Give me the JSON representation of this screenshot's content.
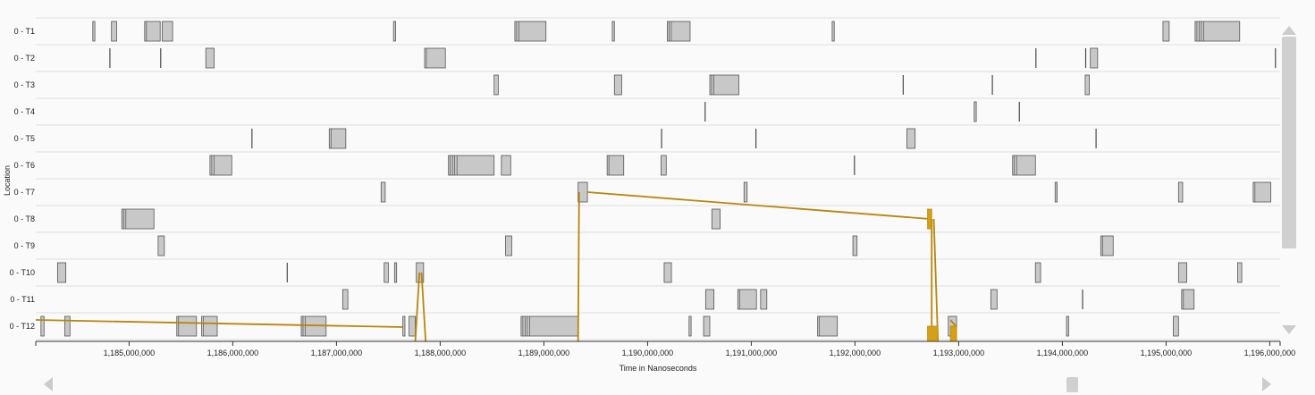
{
  "y_axis_title": "Location",
  "x_axis_title": "Time in Nanoseconds",
  "colors": {
    "background": "#fafafa",
    "gridline": "#dddddd",
    "bar_fill": "#c8c8c8",
    "bar_stroke": "#555555",
    "event_dark": "#444444",
    "message_line": "#b8860b",
    "scrollbar": "#d0d0d0",
    "arrow": "#cccccc"
  },
  "x_range": [
    1184100000,
    1196100000
  ],
  "x_ticks": [
    {
      "value": 1185000000,
      "label": "1,185,000,000"
    },
    {
      "value": 1186000000,
      "label": "1,186,000,000"
    },
    {
      "value": 1187000000,
      "label": "1,187,000,000"
    },
    {
      "value": 1188000000,
      "label": "1,188,000,000"
    },
    {
      "value": 1189000000,
      "label": "1,189,000,000"
    },
    {
      "value": 1190000000,
      "label": "1,190,000,000"
    },
    {
      "value": 1191000000,
      "label": "1,191,000,000"
    },
    {
      "value": 1192000000,
      "label": "1,192,000,000"
    },
    {
      "value": 1193000000,
      "label": "1,193,000,000"
    },
    {
      "value": 1194000000,
      "label": "1,194,000,000"
    },
    {
      "value": 1195000000,
      "label": "1,195,000,000"
    },
    {
      "value": 1196000000,
      "label": "1,196,000,000"
    }
  ],
  "rows": [
    {
      "label": "0 - T1",
      "events": [
        [
          1184650000,
          1184670000
        ],
        [
          1184830000,
          1184880000
        ],
        [
          1185150000,
          1185300000
        ],
        [
          1185320000,
          1185420000
        ],
        [
          1187550000,
          1187570000
        ],
        [
          1188720000,
          1189020000
        ],
        [
          1189660000,
          1189680000
        ],
        [
          1190190000,
          1190410000
        ],
        [
          1191780000,
          1191800000
        ],
        [
          1194970000,
          1195030000
        ],
        [
          1195280000,
          1195710000
        ]
      ]
    },
    {
      "label": "0 - T2",
      "events": [
        [
          1184810000,
          1184820000
        ],
        [
          1185300000,
          1185310000
        ],
        [
          1185740000,
          1185820000
        ],
        [
          1187850000,
          1188050000
        ],
        [
          1193740000,
          1193750000
        ],
        [
          1194220000,
          1194230000
        ],
        [
          1194270000,
          1194340000
        ],
        [
          1196050000,
          1196060000
        ]
      ]
    },
    {
      "label": "0 - T3",
      "events": [
        [
          1188520000,
          1188560000
        ],
        [
          1189680000,
          1189750000
        ],
        [
          1190600000,
          1190880000
        ],
        [
          1192460000,
          1192470000
        ],
        [
          1193320000,
          1193330000
        ],
        [
          1194220000,
          1194260000
        ]
      ]
    },
    {
      "label": "0 - T4",
      "events": [
        [
          1190550000,
          1190560000
        ],
        [
          1193150000,
          1193170000
        ],
        [
          1193580000,
          1193590000
        ]
      ]
    },
    {
      "label": "0 - T5",
      "events": [
        [
          1186180000,
          1186190000
        ],
        [
          1186930000,
          1187090000
        ],
        [
          1190130000,
          1190140000
        ],
        [
          1191040000,
          1191050000
        ],
        [
          1192500000,
          1192580000
        ],
        [
          1194320000,
          1194330000
        ]
      ]
    },
    {
      "label": "0 - T6",
      "events": [
        [
          1185780000,
          1185990000
        ],
        [
          1188080000,
          1188520000
        ],
        [
          1188590000,
          1188680000
        ],
        [
          1189610000,
          1189770000
        ],
        [
          1190130000,
          1190180000
        ],
        [
          1191990000,
          1192000000
        ],
        [
          1193520000,
          1193740000
        ]
      ]
    },
    {
      "label": "0 - T7",
      "events": [
        [
          1187430000,
          1187470000
        ],
        [
          1189330000,
          1189420000
        ],
        [
          1190930000,
          1190960000
        ],
        [
          1193930000,
          1193950000
        ],
        [
          1195120000,
          1195160000
        ],
        [
          1195840000,
          1196010000
        ]
      ]
    },
    {
      "label": "0 - T8",
      "events": [
        [
          1184930000,
          1185240000
        ],
        [
          1190620000,
          1190700000
        ]
      ]
    },
    {
      "label": "0 - T9",
      "events": [
        [
          1185280000,
          1185340000
        ],
        [
          1188630000,
          1188690000
        ],
        [
          1191980000,
          1192020000
        ],
        [
          1194370000,
          1194490000
        ]
      ]
    },
    {
      "label": "0 - T10",
      "events": [
        [
          1184310000,
          1184390000
        ],
        [
          1186520000,
          1186530000
        ],
        [
          1187460000,
          1187500000
        ],
        [
          1187560000,
          1187580000
        ],
        [
          1187770000,
          1187840000
        ],
        [
          1190160000,
          1190230000
        ],
        [
          1193740000,
          1193790000
        ],
        [
          1195120000,
          1195200000
        ],
        [
          1195690000,
          1195730000
        ]
      ]
    },
    {
      "label": "0 - T11",
      "events": [
        [
          1187060000,
          1187110000
        ],
        [
          1190560000,
          1190640000
        ],
        [
          1190870000,
          1191050000
        ],
        [
          1191090000,
          1191150000
        ],
        [
          1193310000,
          1193370000
        ],
        [
          1194190000,
          1194200000
        ],
        [
          1195150000,
          1195270000
        ]
      ]
    },
    {
      "label": "0 - T12",
      "events": [
        [
          1184150000,
          1184180000
        ],
        [
          1184380000,
          1184430000
        ],
        [
          1185460000,
          1185650000
        ],
        [
          1185700000,
          1185850000
        ],
        [
          1186660000,
          1186900000
        ],
        [
          1187640000,
          1187660000
        ],
        [
          1187700000,
          1187760000
        ],
        [
          1188780000,
          1189330000
        ],
        [
          1190400000,
          1190420000
        ],
        [
          1190540000,
          1190600000
        ],
        [
          1191640000,
          1191830000
        ],
        [
          1192900000,
          1192980000
        ],
        [
          1194040000,
          1194060000
        ],
        [
          1195070000,
          1195120000
        ]
      ]
    }
  ],
  "messages": [
    {
      "from_row": 11,
      "from_time": 1184100000,
      "to_row": 11,
      "to_time": 1187640000
    },
    {
      "from_row": 9,
      "from_time": 1187800000,
      "to_row": 11,
      "to_time": 1187760000
    },
    {
      "from_row": 9,
      "from_time": 1187820000,
      "to_row": 11,
      "to_time": 1187860000
    },
    {
      "from_row": 6,
      "from_time": 1189340000,
      "to_row": 11,
      "to_time": 1189330000
    },
    {
      "from_row": 6,
      "from_time": 1189420000,
      "to_row": 7,
      "to_time": 1192720000
    },
    {
      "from_row": 7,
      "from_time": 1192740000,
      "to_row": 11,
      "to_time": 1192740000
    },
    {
      "from_row": 7,
      "from_time": 1192760000,
      "to_row": 11,
      "to_time": 1192800000
    },
    {
      "from_row": 11,
      "from_time": 1192920000,
      "to_row": 11,
      "to_time": 1192980000
    }
  ],
  "message_boxes": [
    {
      "row": 7,
      "time_start": 1192700000,
      "time_end": 1192740000
    },
    {
      "row": 11,
      "time_start": 1192700000,
      "time_end": 1192800000
    },
    {
      "row": 11,
      "time_start": 1192920000,
      "time_end": 1192980000
    }
  ],
  "icons": {
    "scroll_up": "triangle-up-icon",
    "scroll_down": "triangle-down-icon",
    "scroll_left": "triangle-left-icon",
    "scroll_right": "triangle-right-icon"
  }
}
